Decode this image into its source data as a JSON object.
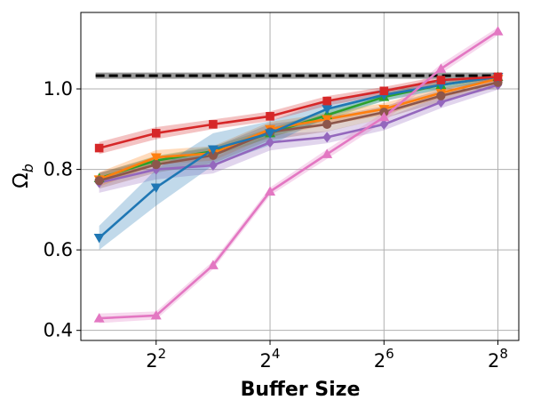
{
  "chart_data": {
    "type": "line",
    "xlabel": "Buffer Size",
    "ylabel_main": "Ω",
    "ylabel_sub": "b",
    "x_scale": "log2",
    "xlim": [
      1.6,
      330
    ],
    "ylim": [
      0.375,
      1.19
    ],
    "x": [
      2,
      4,
      8,
      16,
      32,
      64,
      128,
      256
    ],
    "x_ticks": [
      {
        "value": 4,
        "base": "2",
        "exp": "2"
      },
      {
        "value": 16,
        "base": "2",
        "exp": "4"
      },
      {
        "value": 64,
        "base": "2",
        "exp": "6"
      },
      {
        "value": 256,
        "base": "2",
        "exp": "8"
      }
    ],
    "y_ticks": [
      {
        "value": 0.4,
        "label": "0.4"
      },
      {
        "value": 0.6,
        "label": "0.6"
      },
      {
        "value": 0.8,
        "label": "0.8"
      },
      {
        "value": 1.0,
        "label": "1.0"
      }
    ],
    "grid": true,
    "reference_line": {
      "y": 1.033,
      "x_from": 2,
      "x_to": 256,
      "style": "dashed",
      "color": "#000000"
    },
    "series": [
      {
        "color": "#9467bd",
        "marker": "diamond",
        "values": [
          0.767,
          0.8,
          0.81,
          0.867,
          0.88,
          0.912,
          0.967,
          1.01
        ],
        "band": [
          0.025,
          0.025,
          0.02,
          0.02,
          0.015,
          0.015,
          0.015,
          0.012
        ]
      },
      {
        "color": "#2ca02c",
        "marker": "triangle-up",
        "values": [
          0.778,
          0.822,
          0.845,
          0.89,
          0.935,
          0.98,
          1.01,
          1.03
        ],
        "band": [
          0.012,
          0.012,
          0.012,
          0.012,
          0.012,
          0.01,
          0.01,
          0.008
        ]
      },
      {
        "color": "#ff7f0e",
        "marker": "triangle-down",
        "values": [
          0.775,
          0.83,
          0.84,
          0.9,
          0.925,
          0.95,
          0.99,
          1.025
        ],
        "band": [
          0.018,
          0.018,
          0.018,
          0.018,
          0.015,
          0.015,
          0.012,
          0.01
        ]
      },
      {
        "color": "#8c564b",
        "marker": "circle",
        "values": [
          0.772,
          0.812,
          0.835,
          0.893,
          0.912,
          0.942,
          0.983,
          1.016
        ],
        "band": [
          0.02,
          0.02,
          0.02,
          0.02,
          0.018,
          0.015,
          0.015,
          0.012
        ]
      },
      {
        "color": "#1f77b4",
        "marker": "triangle-down",
        "values": [
          0.63,
          0.755,
          0.85,
          0.89,
          0.95,
          0.985,
          1.01,
          1.03
        ],
        "band": [
          0.03,
          0.045,
          0.04,
          0.03,
          0.02,
          0.015,
          0.012,
          0.01
        ]
      },
      {
        "color": "#d62728",
        "marker": "square",
        "values": [
          0.853,
          0.89,
          0.912,
          0.932,
          0.97,
          0.995,
          1.022,
          1.03
        ],
        "band": [
          0.015,
          0.015,
          0.012,
          0.012,
          0.012,
          0.01,
          0.01,
          0.008
        ]
      },
      {
        "color": "#e377c2",
        "marker": "triangle-up",
        "values": [
          0.43,
          0.437,
          0.562,
          0.745,
          0.838,
          0.93,
          1.05,
          1.143
        ],
        "band": [
          0.012,
          0.01,
          0.01,
          0.01,
          0.012,
          0.012,
          0.012,
          0.01
        ]
      }
    ]
  }
}
